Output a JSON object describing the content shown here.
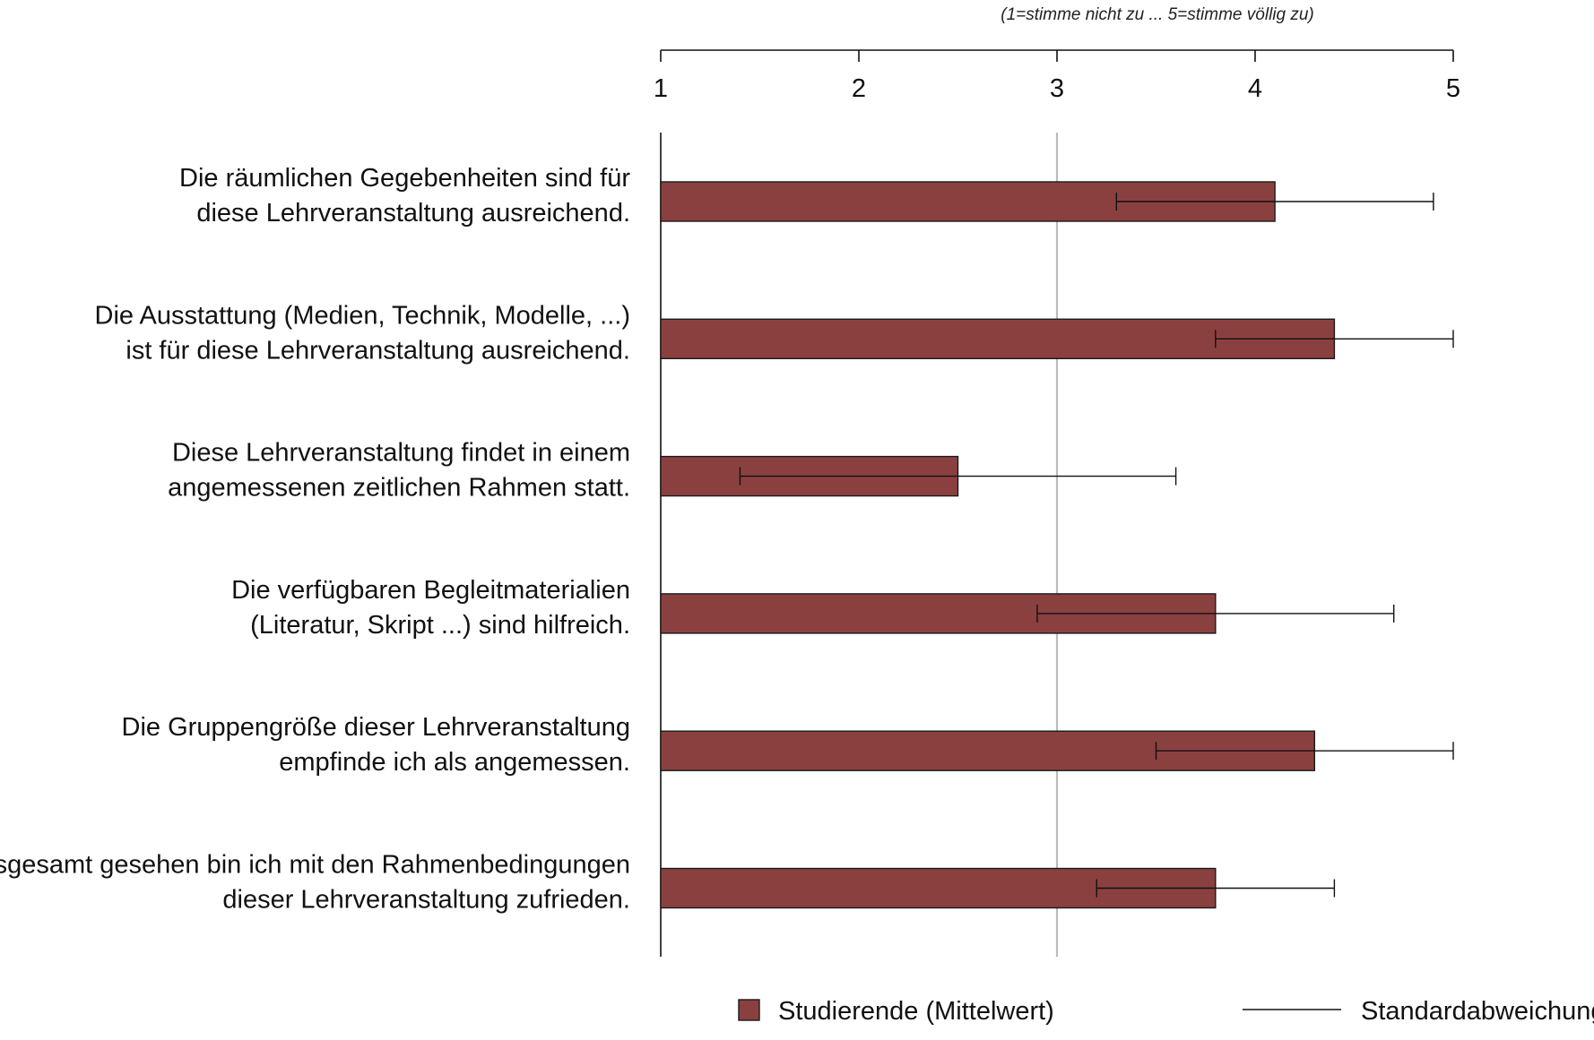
{
  "chart_data": {
    "type": "bar",
    "orientation": "horizontal",
    "subtitle": "(1=stimme nicht zu ... 5=stimme völlig zu)",
    "xlim": [
      1,
      5
    ],
    "x_ticks": [
      "1",
      "2",
      "3",
      "4",
      "5"
    ],
    "reference_line": 3,
    "categories": [
      [
        "Die räumlichen Gegebenheiten sind für",
        "diese Lehrveranstaltung ausreichend."
      ],
      [
        "Die Ausstattung (Medien, Technik, Modelle, ...)",
        "ist für diese Lehrveranstaltung ausreichend."
      ],
      [
        "Diese Lehrveranstaltung findet in einem",
        "angemessenen zeitlichen Rahmen statt."
      ],
      [
        "Die verfügbaren Begleitmaterialien",
        "(Literatur, Skript ...) sind hilfreich."
      ],
      [
        "Die Gruppengröße dieser Lehrveranstaltung",
        "empfinde ich als angemessen."
      ],
      [
        "Insgesamt gesehen bin ich mit den Rahmenbedingungen",
        "dieser Lehrveranstaltung zufrieden."
      ]
    ],
    "series": [
      {
        "name": "Studierende (Mittelwert)",
        "color": "#8b4040",
        "values": [
          4.1,
          4.4,
          2.5,
          3.8,
          4.3,
          3.8
        ],
        "error_low": [
          3.3,
          3.8,
          1.4,
          2.9,
          3.5,
          3.2
        ],
        "error_high": [
          4.9,
          5.0,
          3.6,
          4.7,
          5.0,
          4.4
        ]
      }
    ],
    "legend": {
      "position": "bottom",
      "items": [
        {
          "label": "Studierende (Mittelwert)",
          "symbol": "square",
          "color": "#8b4040"
        },
        {
          "label": "Standardabweichung",
          "symbol": "line",
          "color": "#111111"
        }
      ]
    }
  }
}
